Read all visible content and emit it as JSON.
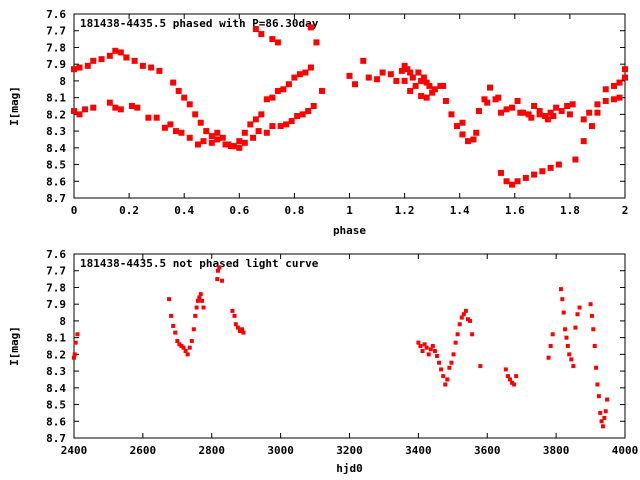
{
  "chart_data": [
    {
      "type": "scatter",
      "title": "181438-4435.5 phased with P=86.30day",
      "xlabel": "phase",
      "ylabel": "I[mag]",
      "xlim": [
        0,
        2
      ],
      "ylim": [
        8.7,
        7.6
      ],
      "y_inverted": true,
      "grid": false,
      "x_ticks": [
        0,
        0.2,
        0.4,
        0.6,
        0.8,
        1,
        1.2,
        1.4,
        1.6,
        1.8,
        2
      ],
      "x_tick_labels": [
        "0",
        "0.2",
        "0.4",
        "0.6",
        "0.8",
        "1",
        "1.2",
        "1.4",
        "1.6",
        "1.8",
        "2"
      ],
      "y_ticks": [
        7.6,
        7.7,
        7.8,
        7.9,
        8.0,
        8.1,
        8.2,
        8.3,
        8.4,
        8.5,
        8.6,
        8.7
      ],
      "y_tick_labels": [
        "7.6",
        "7.7",
        "7.8",
        "7.9",
        "8",
        "8.1",
        "8.2",
        "8.3",
        "8.4",
        "8.5",
        "8.6",
        "8.7"
      ],
      "marker_color": "#ff0000",
      "points": [
        [
          0.0,
          7.93
        ],
        [
          0.02,
          7.92
        ],
        [
          0.05,
          7.91
        ],
        [
          0.07,
          7.88
        ],
        [
          0.1,
          7.87
        ],
        [
          0.13,
          7.85
        ],
        [
          0.15,
          7.82
        ],
        [
          0.17,
          7.83
        ],
        [
          0.19,
          7.86
        ],
        [
          0.22,
          7.88
        ],
        [
          0.25,
          7.91
        ],
        [
          0.28,
          7.92
        ],
        [
          0.31,
          7.94
        ],
        [
          0.0,
          8.18
        ],
        [
          0.02,
          8.2
        ],
        [
          0.04,
          8.17
        ],
        [
          0.07,
          8.16
        ],
        [
          0.13,
          8.13
        ],
        [
          0.15,
          8.16
        ],
        [
          0.17,
          8.17
        ],
        [
          0.21,
          8.15
        ],
        [
          0.23,
          8.16
        ],
        [
          0.27,
          8.22
        ],
        [
          0.3,
          8.22
        ],
        [
          0.33,
          8.28
        ],
        [
          0.35,
          8.26
        ],
        [
          0.37,
          8.3
        ],
        [
          0.39,
          8.31
        ],
        [
          0.42,
          8.34
        ],
        [
          0.45,
          8.38
        ],
        [
          0.47,
          8.36
        ],
        [
          0.5,
          8.37
        ],
        [
          0.52,
          8.35
        ],
        [
          0.55,
          8.38
        ],
        [
          0.57,
          8.39
        ],
        [
          0.6,
          8.4
        ],
        [
          0.62,
          8.37
        ],
        [
          0.65,
          8.34
        ],
        [
          0.67,
          8.3
        ],
        [
          0.7,
          8.31
        ],
        [
          0.72,
          8.27
        ],
        [
          0.75,
          8.27
        ],
        [
          0.77,
          8.26
        ],
        [
          0.79,
          8.24
        ],
        [
          0.81,
          8.21
        ],
        [
          0.83,
          8.2
        ],
        [
          0.85,
          8.18
        ],
        [
          0.87,
          8.15
        ],
        [
          0.36,
          8.01
        ],
        [
          0.38,
          8.06
        ],
        [
          0.4,
          8.1
        ],
        [
          0.42,
          8.14
        ],
        [
          0.44,
          8.2
        ],
        [
          0.46,
          8.25
        ],
        [
          0.48,
          8.3
        ],
        [
          0.5,
          8.33
        ],
        [
          0.52,
          8.31
        ],
        [
          0.54,
          8.34
        ],
        [
          0.56,
          8.38
        ],
        [
          0.58,
          8.39
        ],
        [
          0.6,
          8.36
        ],
        [
          0.62,
          8.31
        ],
        [
          0.64,
          8.26
        ],
        [
          0.66,
          8.23
        ],
        [
          0.68,
          8.2
        ],
        [
          0.7,
          8.11
        ],
        [
          0.72,
          8.1
        ],
        [
          0.74,
          8.06
        ],
        [
          0.76,
          8.05
        ],
        [
          0.78,
          8.02
        ],
        [
          0.8,
          7.98
        ],
        [
          0.82,
          7.96
        ],
        [
          0.84,
          7.95
        ],
        [
          0.86,
          7.92
        ],
        [
          0.88,
          7.77
        ],
        [
          0.9,
          8.06
        ],
        [
          0.66,
          7.69
        ],
        [
          0.68,
          7.72
        ],
        [
          0.72,
          7.75
        ],
        [
          0.74,
          7.77
        ],
        [
          0.86,
          7.68
        ],
        [
          1.0,
          7.97
        ],
        [
          1.02,
          8.02
        ],
        [
          1.05,
          7.88
        ],
        [
          1.07,
          7.98
        ],
        [
          1.1,
          7.99
        ],
        [
          1.12,
          7.95
        ],
        [
          1.15,
          7.96
        ],
        [
          1.17,
          8.0
        ],
        [
          1.19,
          7.94
        ],
        [
          1.2,
          7.91
        ],
        [
          1.21,
          7.93
        ],
        [
          1.22,
          7.95
        ],
        [
          1.23,
          7.98
        ],
        [
          1.24,
          8.03
        ],
        [
          1.25,
          7.95
        ],
        [
          1.26,
          8.0
        ],
        [
          1.27,
          7.98
        ],
        [
          1.28,
          8.01
        ],
        [
          1.29,
          8.03
        ],
        [
          1.3,
          8.07
        ],
        [
          1.31,
          8.05
        ],
        [
          1.34,
          8.03
        ],
        [
          1.35,
          8.12
        ],
        [
          1.37,
          8.2
        ],
        [
          1.39,
          8.27
        ],
        [
          1.41,
          8.32
        ],
        [
          1.43,
          8.36
        ],
        [
          1.45,
          8.35
        ],
        [
          1.46,
          8.31
        ],
        [
          1.47,
          8.18
        ],
        [
          1.49,
          8.11
        ],
        [
          1.51,
          8.04
        ],
        [
          1.53,
          8.11
        ],
        [
          1.55,
          8.19
        ],
        [
          1.57,
          8.17
        ],
        [
          1.59,
          8.16
        ],
        [
          1.61,
          8.12
        ],
        [
          1.63,
          8.19
        ],
        [
          1.65,
          8.2
        ],
        [
          1.67,
          8.15
        ],
        [
          1.69,
          8.2
        ],
        [
          1.71,
          8.21
        ],
        [
          1.73,
          8.19
        ],
        [
          1.75,
          8.16
        ],
        [
          1.77,
          8.18
        ],
        [
          1.79,
          8.15
        ],
        [
          1.81,
          8.14
        ],
        [
          1.85,
          8.23
        ],
        [
          1.87,
          8.19
        ],
        [
          1.9,
          8.14
        ],
        [
          1.93,
          8.12
        ],
        [
          1.96,
          8.11
        ],
        [
          1.98,
          8.1
        ],
        [
          1.2,
          8.0
        ],
        [
          1.22,
          8.06
        ],
        [
          1.26,
          8.09
        ],
        [
          1.28,
          8.1
        ],
        [
          1.33,
          8.03
        ],
        [
          1.41,
          8.25
        ],
        [
          1.5,
          8.13
        ],
        [
          1.54,
          8.1
        ],
        [
          1.62,
          8.19
        ],
        [
          1.66,
          8.22
        ],
        [
          1.69,
          8.18
        ],
        [
          1.72,
          8.23
        ],
        [
          1.74,
          8.21
        ],
        [
          1.8,
          8.2
        ],
        [
          1.55,
          8.55
        ],
        [
          1.57,
          8.6
        ],
        [
          1.59,
          8.62
        ],
        [
          1.61,
          8.6
        ],
        [
          1.64,
          8.58
        ],
        [
          1.67,
          8.56
        ],
        [
          1.7,
          8.54
        ],
        [
          1.73,
          8.52
        ],
        [
          1.76,
          8.5
        ],
        [
          1.82,
          8.47
        ],
        [
          1.85,
          8.36
        ],
        [
          1.88,
          8.27
        ],
        [
          1.9,
          8.19
        ],
        [
          1.93,
          8.05
        ],
        [
          1.96,
          8.03
        ],
        [
          1.98,
          8.01
        ],
        [
          2.0,
          7.98
        ],
        [
          2.0,
          7.93
        ]
      ],
      "annotations": []
    },
    {
      "type": "scatter",
      "title": "181438-4435.5 not phased light curve",
      "xlabel": "hjd0",
      "ylabel": "I[mag]",
      "xlim": [
        2400,
        4000
      ],
      "ylim": [
        8.7,
        7.6
      ],
      "y_inverted": true,
      "grid": false,
      "x_ticks": [
        2400,
        2600,
        2800,
        3000,
        3200,
        3400,
        3600,
        3800,
        4000
      ],
      "x_tick_labels": [
        "2400",
        "2600",
        "2800",
        "3000",
        "3200",
        "3400",
        "3600",
        "3800",
        "4000"
      ],
      "y_ticks": [
        7.6,
        7.7,
        7.8,
        7.9,
        8.0,
        8.1,
        8.2,
        8.3,
        8.4,
        8.5,
        8.6,
        8.7
      ],
      "y_tick_labels": [
        "7.6",
        "7.7",
        "7.8",
        "7.9",
        "8",
        "8.1",
        "8.2",
        "8.3",
        "8.4",
        "8.5",
        "8.6",
        "8.7"
      ],
      "marker_color": "#ff0000",
      "points": [
        [
          2400,
          8.22
        ],
        [
          2402,
          8.2
        ],
        [
          2405,
          8.13
        ],
        [
          2410,
          8.08
        ],
        [
          2676,
          7.87
        ],
        [
          2682,
          7.97
        ],
        [
          2688,
          8.03
        ],
        [
          2694,
          8.07
        ],
        [
          2700,
          8.12
        ],
        [
          2706,
          8.14
        ],
        [
          2712,
          8.15
        ],
        [
          2718,
          8.16
        ],
        [
          2724,
          8.18
        ],
        [
          2730,
          8.2
        ],
        [
          2736,
          8.16
        ],
        [
          2742,
          8.12
        ],
        [
          2748,
          8.05
        ],
        [
          2752,
          7.97
        ],
        [
          2756,
          7.92
        ],
        [
          2760,
          7.88
        ],
        [
          2764,
          7.86
        ],
        [
          2768,
          7.84
        ],
        [
          2772,
          7.88
        ],
        [
          2776,
          7.92
        ],
        [
          2816,
          7.75
        ],
        [
          2818,
          7.7
        ],
        [
          2822,
          7.68
        ],
        [
          2830,
          7.76
        ],
        [
          2860,
          7.94
        ],
        [
          2866,
          7.97
        ],
        [
          2870,
          8.02
        ],
        [
          2876,
          8.04
        ],
        [
          2882,
          8.06
        ],
        [
          2888,
          8.05
        ],
        [
          2892,
          8.07
        ],
        [
          3400,
          8.13
        ],
        [
          3406,
          8.15
        ],
        [
          3412,
          8.18
        ],
        [
          3418,
          8.14
        ],
        [
          3424,
          8.16
        ],
        [
          3430,
          8.2
        ],
        [
          3436,
          8.17
        ],
        [
          3442,
          8.15
        ],
        [
          3448,
          8.18
        ],
        [
          3454,
          8.21
        ],
        [
          3460,
          8.25
        ],
        [
          3466,
          8.29
        ],
        [
          3472,
          8.33
        ],
        [
          3478,
          8.38
        ],
        [
          3484,
          8.35
        ],
        [
          3490,
          8.28
        ],
        [
          3496,
          8.25
        ],
        [
          3502,
          8.2
        ],
        [
          3508,
          8.13
        ],
        [
          3514,
          8.08
        ],
        [
          3520,
          8.02
        ],
        [
          3526,
          7.98
        ],
        [
          3532,
          7.96
        ],
        [
          3538,
          7.94
        ],
        [
          3544,
          7.99
        ],
        [
          3550,
          8.0
        ],
        [
          3556,
          8.08
        ],
        [
          3580,
          8.27
        ],
        [
          3654,
          8.29
        ],
        [
          3660,
          8.33
        ],
        [
          3666,
          8.35
        ],
        [
          3672,
          8.37
        ],
        [
          3678,
          8.38
        ],
        [
          3684,
          8.33
        ],
        [
          3778,
          8.22
        ],
        [
          3784,
          8.15
        ],
        [
          3790,
          8.08
        ],
        [
          3814,
          7.81
        ],
        [
          3818,
          7.87
        ],
        [
          3822,
          7.95
        ],
        [
          3826,
          8.05
        ],
        [
          3830,
          8.1
        ],
        [
          3834,
          8.15
        ],
        [
          3838,
          8.2
        ],
        [
          3844,
          8.23
        ],
        [
          3850,
          8.27
        ],
        [
          3856,
          8.04
        ],
        [
          3862,
          7.96
        ],
        [
          3868,
          7.92
        ],
        [
          3900,
          7.9
        ],
        [
          3904,
          7.97
        ],
        [
          3908,
          8.05
        ],
        [
          3912,
          8.15
        ],
        [
          3916,
          8.28
        ],
        [
          3920,
          8.38
        ],
        [
          3924,
          8.45
        ],
        [
          3928,
          8.55
        ],
        [
          3932,
          8.6
        ],
        [
          3936,
          8.63
        ],
        [
          3940,
          8.58
        ],
        [
          3944,
          8.54
        ],
        [
          3948,
          8.47
        ]
      ]
    }
  ]
}
